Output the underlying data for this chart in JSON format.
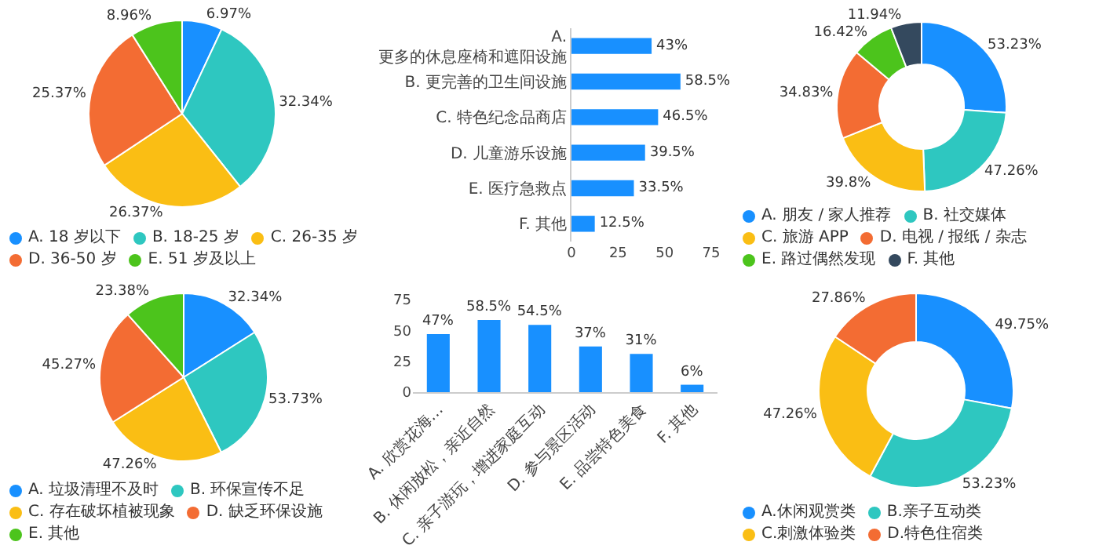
{
  "chart_data": [
    {
      "type": "pie",
      "categories": [
        "A. 18 岁以下",
        "B. 18-25 岁",
        "C. 26-35 岁",
        "D. 36-50 岁",
        "E. 51 岁及以上"
      ],
      "values": [
        6.97,
        32.34,
        26.37,
        25.37,
        8.96
      ],
      "value_labels": [
        "6.97%",
        "32.34%",
        "26.37%",
        "25.37%",
        "8.96%"
      ],
      "colors": [
        "#1890ff",
        "#2ec7c0",
        "#fabe14",
        "#f36c33",
        "#4cc41c"
      ],
      "legend": "bottom"
    },
    {
      "type": "bar",
      "orientation": "horizontal",
      "categories": [
        "A. 更多的休息座椅和遮阳设施",
        "B. 更完善的卫生间设施",
        "C. 特色纪念品商店",
        "D. 儿童游乐设施",
        "E. 医疗急救点",
        "F. 其他"
      ],
      "values": [
        43,
        58.5,
        46.5,
        39.5,
        33.5,
        12.5
      ],
      "value_labels": [
        "43%",
        "58.5%",
        "46.5%",
        "39.5%",
        "33.5%",
        "12.5%"
      ],
      "color": "#1890ff",
      "xlim": [
        0,
        75
      ],
      "xticks": [
        0,
        25,
        50,
        75
      ]
    },
    {
      "type": "donut",
      "categories": [
        "A. 朋友 / 家人推荐",
        "B. 社交媒体",
        "C. 旅游 APP",
        "D. 电视 / 报纸 / 杂志",
        "E. 路过偶然发现",
        "F. 其他"
      ],
      "values": [
        53.23,
        47.26,
        39.8,
        34.83,
        16.42,
        11.94
      ],
      "value_labels": [
        "53.23%",
        "47.26%",
        "39.8%",
        "34.83%",
        "16.42%",
        "11.94%"
      ],
      "colors": [
        "#1890ff",
        "#2ec7c0",
        "#fabe14",
        "#f36c33",
        "#4cc41c",
        "#34495e"
      ],
      "legend": "bottom"
    },
    {
      "type": "pie",
      "categories": [
        "A. 垃圾清理不及时",
        "B. 环保宣传不足",
        "C. 存在破坏植被现象",
        "D. 缺乏环保设施",
        "E. 其他"
      ],
      "values": [
        32.34,
        53.73,
        47.26,
        45.27,
        23.38
      ],
      "value_labels": [
        "32.34%",
        "53.73%",
        "47.26%",
        "45.27%",
        "23.38%"
      ],
      "colors": [
        "#1890ff",
        "#2ec7c0",
        "#fabe14",
        "#f36c33",
        "#4cc41c"
      ],
      "legend": "bottom"
    },
    {
      "type": "bar",
      "categories": [
        "A. 欣赏花海…",
        "B. 休闲放松，亲近自然",
        "C. 亲子游玩，增进家庭互动",
        "D. 参与景区活动",
        "E. 品尝特色美食",
        "F. 其他"
      ],
      "values": [
        47,
        58.5,
        54.5,
        37,
        31,
        6
      ],
      "value_labels": [
        "47%",
        "58.5%",
        "54.5%",
        "37%",
        "31%",
        "6%"
      ],
      "color": "#1890ff",
      "ylim": [
        0,
        75
      ],
      "yticks": [
        0,
        25,
        50,
        75
      ]
    },
    {
      "type": "donut",
      "categories": [
        "A.休闲观赏类",
        "B.亲子互动类",
        "C.刺激体验类",
        "D.特色住宿类"
      ],
      "values": [
        49.75,
        53.23,
        47.26,
        27.86
      ],
      "value_labels": [
        "49.75%",
        "53.23%",
        "47.26%",
        "27.86%"
      ],
      "colors": [
        "#1890ff",
        "#2ec7c0",
        "#fabe14",
        "#f36c33"
      ],
      "legend": "bottom"
    }
  ]
}
